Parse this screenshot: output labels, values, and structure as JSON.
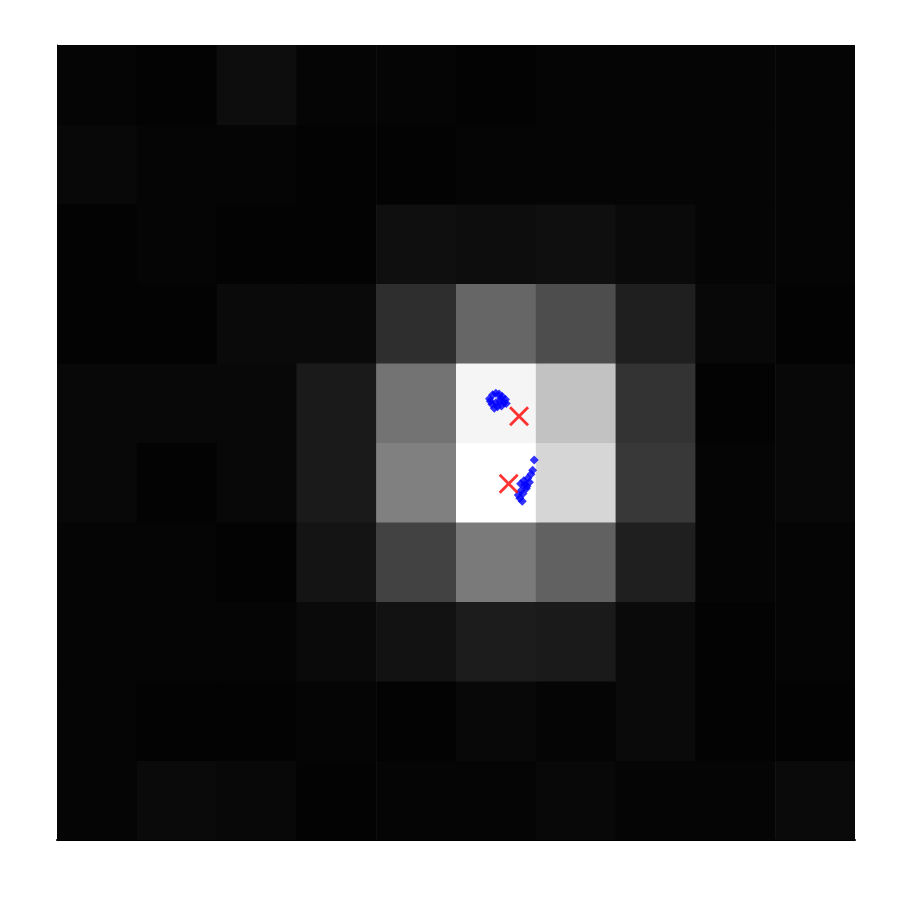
{
  "chart_data": {
    "type": "heatmap",
    "xlim": [
      -0.5,
      9.5
    ],
    "ylim": [
      -0.5,
      9.5
    ],
    "tick_labels": false,
    "color_range": [
      0,
      1
    ],
    "cells": [
      [
        0.02,
        0.04,
        0.03,
        0.01,
        0.02,
        0.02,
        0.03,
        0.02,
        0.02,
        0.04
      ],
      [
        0.02,
        0.01,
        0.01,
        0.02,
        0.01,
        0.03,
        0.02,
        0.04,
        0.01,
        0.01
      ],
      [
        0.02,
        0.02,
        0.02,
        0.04,
        0.07,
        0.11,
        0.1,
        0.04,
        0.01,
        0.02
      ],
      [
        0.02,
        0.02,
        0.01,
        0.08,
        0.26,
        0.48,
        0.38,
        0.12,
        0.02,
        0.02
      ],
      [
        0.03,
        0.01,
        0.03,
        0.1,
        0.5,
        1.0,
        0.84,
        0.22,
        0.02,
        0.03
      ],
      [
        0.03,
        0.03,
        0.03,
        0.1,
        0.45,
        0.96,
        0.76,
        0.2,
        0.01,
        0.03
      ],
      [
        0.01,
        0.01,
        0.04,
        0.04,
        0.18,
        0.4,
        0.3,
        0.12,
        0.03,
        0.01
      ],
      [
        0.01,
        0.02,
        0.01,
        0.01,
        0.06,
        0.05,
        0.06,
        0.04,
        0.02,
        0.02
      ],
      [
        0.03,
        0.02,
        0.02,
        0.01,
        0.01,
        0.02,
        0.02,
        0.02,
        0.02,
        0.02
      ],
      [
        0.02,
        0.01,
        0.05,
        0.02,
        0.02,
        0.01,
        0.02,
        0.02,
        0.02,
        0.02
      ]
    ],
    "series": [
      {
        "type": "scatter",
        "color": "#0000ff",
        "marker": "diamond",
        "x": [
          4.92,
          4.96,
          5.0,
          5.04,
          5.08,
          5.12,
          4.95,
          5.0,
          5.05,
          5.1,
          4.98,
          5.02,
          5.07,
          5.13,
          4.93,
          5.06,
          5.3,
          5.34,
          5.38,
          5.42,
          5.36,
          5.4,
          5.44,
          5.32,
          5.28,
          5.35,
          5.46,
          5.39,
          5.33,
          5.48,
          5.31
        ],
        "y": [
          5.05,
          5.1,
          5.12,
          5.11,
          5.08,
          5.04,
          4.98,
          5.0,
          5.02,
          5.0,
          4.93,
          4.95,
          4.96,
          4.99,
          5.02,
          5.06,
          3.8,
          3.86,
          3.92,
          4.0,
          3.97,
          4.05,
          4.1,
          3.9,
          3.84,
          4.02,
          4.15,
          3.95,
          3.76,
          4.28,
          3.98
        ]
      },
      {
        "type": "scatter",
        "color": "#ff0000",
        "marker": "x",
        "x": [
          5.29,
          5.16
        ],
        "y": [
          4.83,
          3.98
        ]
      }
    ]
  }
}
